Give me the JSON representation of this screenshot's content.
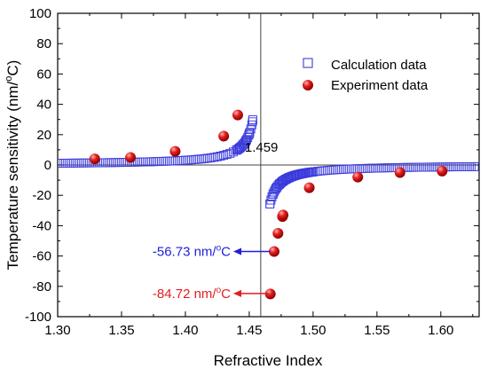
{
  "chart_data": {
    "type": "scatter",
    "xlabel": "Refractive Index",
    "ylabel_main": "Temperature sensitivity (nm/",
    "ylabel_sup": "o",
    "ylabel_tail": "C)",
    "xlim": [
      1.3,
      1.63
    ],
    "ylim": [
      -100,
      100
    ],
    "xticks": [
      1.3,
      1.35,
      1.4,
      1.45,
      1.5,
      1.55,
      1.6
    ],
    "xtick_labels": [
      "1.30",
      "1.35",
      "1.40",
      "1.45",
      "1.50",
      "1.55",
      "1.60"
    ],
    "yticks": [
      -100,
      -80,
      -60,
      -40,
      -20,
      0,
      20,
      40,
      60,
      80,
      100
    ],
    "ytick_labels": [
      "-100",
      "-80",
      "-60",
      "-40",
      "-20",
      "0",
      "20",
      "40",
      "60",
      "80",
      "100"
    ],
    "grid": false,
    "legend_position": "top-right",
    "series": [
      {
        "name": "Calculation data",
        "marker": "hollow-square",
        "color": "#3b3bdd",
        "model": {
          "pole_x": 1.459,
          "coefficient": -0.185,
          "left_x_start": 1.3,
          "left_x_end": 1.4535,
          "left_step": 0.0025,
          "right_x_start": 1.4662,
          "right_x_end": 1.63,
          "right_step": 0.0025
        }
      },
      {
        "name": "Experiment data",
        "marker": "filled-circle",
        "color": "#e31e1e",
        "x": [
          1.329,
          1.357,
          1.392,
          1.43,
          1.441,
          1.4665,
          1.4695,
          1.4725,
          1.476,
          1.4765,
          1.497,
          1.535,
          1.568,
          1.601
        ],
        "y": [
          4,
          5,
          9,
          19,
          33,
          -85,
          -57,
          -45,
          -34,
          -33,
          -15,
          -8,
          -5,
          -4
        ]
      }
    ],
    "reference_lines": {
      "vertical_x": 1.459,
      "horizontal_y": 0
    },
    "annotations": {
      "pole_label": "1.459",
      "blue_label_main": "-56.73 nm/",
      "blue_label_sup": "o",
      "blue_label_tail": "C",
      "blue_label_color": "#1f1fd8",
      "blue_arrow_y": -57,
      "red_label_main": "-84.72 nm/",
      "red_label_sup": "o",
      "red_label_tail": "C",
      "red_label_color": "#e31e1e",
      "red_arrow_y": -84.72
    }
  }
}
